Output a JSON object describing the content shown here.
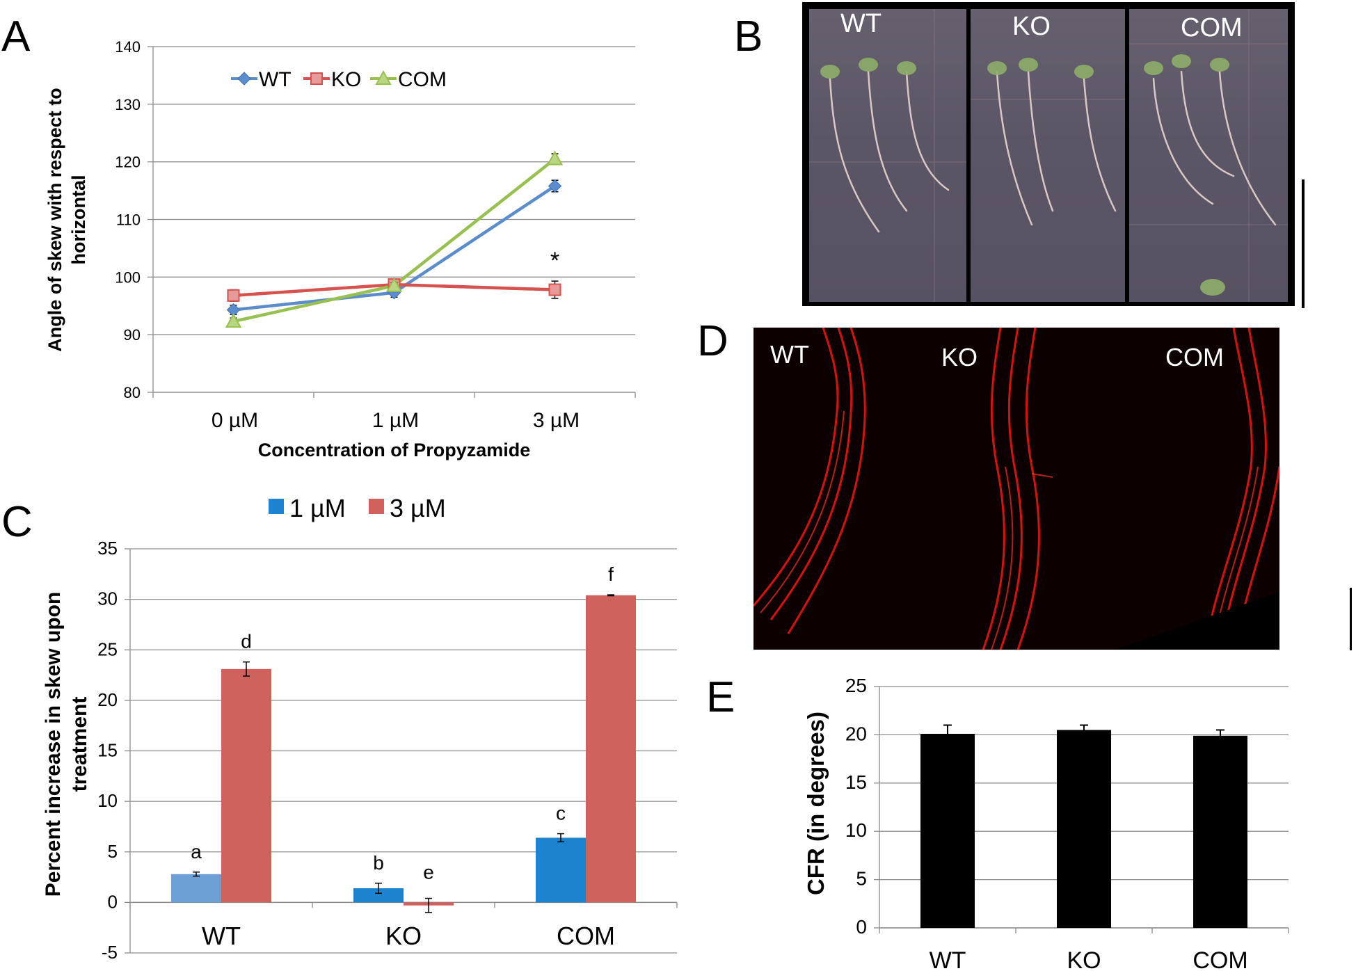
{
  "panels": {
    "A": "A",
    "B": "B",
    "C": "C",
    "D": "D",
    "E": "E"
  },
  "chart_data": [
    {
      "id": "A",
      "type": "line",
      "categories": [
        "0 µM",
        "1 µM",
        "3 µM"
      ],
      "series": [
        {
          "name": "WT",
          "color": "#5b8ccc",
          "marker": "diamond",
          "values": [
            94.3,
            97.3,
            115.8
          ],
          "errors": [
            0.8,
            0.8,
            1.0
          ]
        },
        {
          "name": "KO",
          "color": "#d6524e",
          "marker": "square",
          "values": [
            96.8,
            98.7,
            97.8
          ],
          "errors": [
            1.0,
            0.7,
            1.5
          ]
        },
        {
          "name": "COM",
          "color": "#98c050",
          "marker": "triangle",
          "values": [
            92.3,
            98.5,
            120.5
          ],
          "errors": [
            0.6,
            0.5,
            0.9
          ]
        }
      ],
      "ylim": [
        80,
        140
      ],
      "yticks": [
        "80",
        "90",
        "100",
        "110",
        "120",
        "130",
        "140"
      ],
      "ylabel_line1": "Angle of skew with respect to",
      "ylabel_line2": "horizontal",
      "xlabel": "Concentration of Propyzamide",
      "annotations": [
        {
          "text": "*",
          "category": "3 µM",
          "series": "KO"
        }
      ],
      "grid": true,
      "legend": "top-left"
    },
    {
      "id": "C",
      "type": "bar",
      "categories": [
        "WT",
        "KO",
        "COM"
      ],
      "series": [
        {
          "name": "1 µM",
          "color": "#1e83cf",
          "values": [
            2.8,
            1.4,
            6.4
          ],
          "errors": [
            0.2,
            0.5,
            0.4
          ],
          "letters": [
            "a",
            "b",
            "c"
          ]
        },
        {
          "name": "3 µM",
          "color": "#cf625d",
          "values": [
            23.1,
            -0.3,
            30.4
          ],
          "errors": [
            0.7,
            0.7,
            0.05
          ],
          "letters": [
            "d",
            "e",
            "f"
          ]
        }
      ],
      "ylim": [
        -5,
        35
      ],
      "yticks": [
        "-5",
        "0",
        "5",
        "10",
        "15",
        "20",
        "25",
        "30",
        "35"
      ],
      "ylabel_line1": "Percent increase in skew upon",
      "ylabel_line2": "treatment",
      "grid": true,
      "legend": "top"
    },
    {
      "id": "E",
      "type": "bar",
      "categories": [
        "WT",
        "KO",
        "COM"
      ],
      "series": [
        {
          "color": "#000000",
          "values": [
            20.1,
            20.5,
            19.9
          ],
          "errors": [
            0.9,
            0.5,
            0.6
          ]
        }
      ],
      "ylim": [
        0,
        25
      ],
      "yticks": [
        "0",
        "5",
        "10",
        "15",
        "20",
        "25"
      ],
      "ylabel": "CFR (in degrees)",
      "grid": true
    }
  ],
  "panelB": {
    "labels": [
      "WT",
      "KO",
      "COM"
    ]
  },
  "panelD": {
    "labels": [
      "WT",
      "KO",
      "COM"
    ]
  }
}
